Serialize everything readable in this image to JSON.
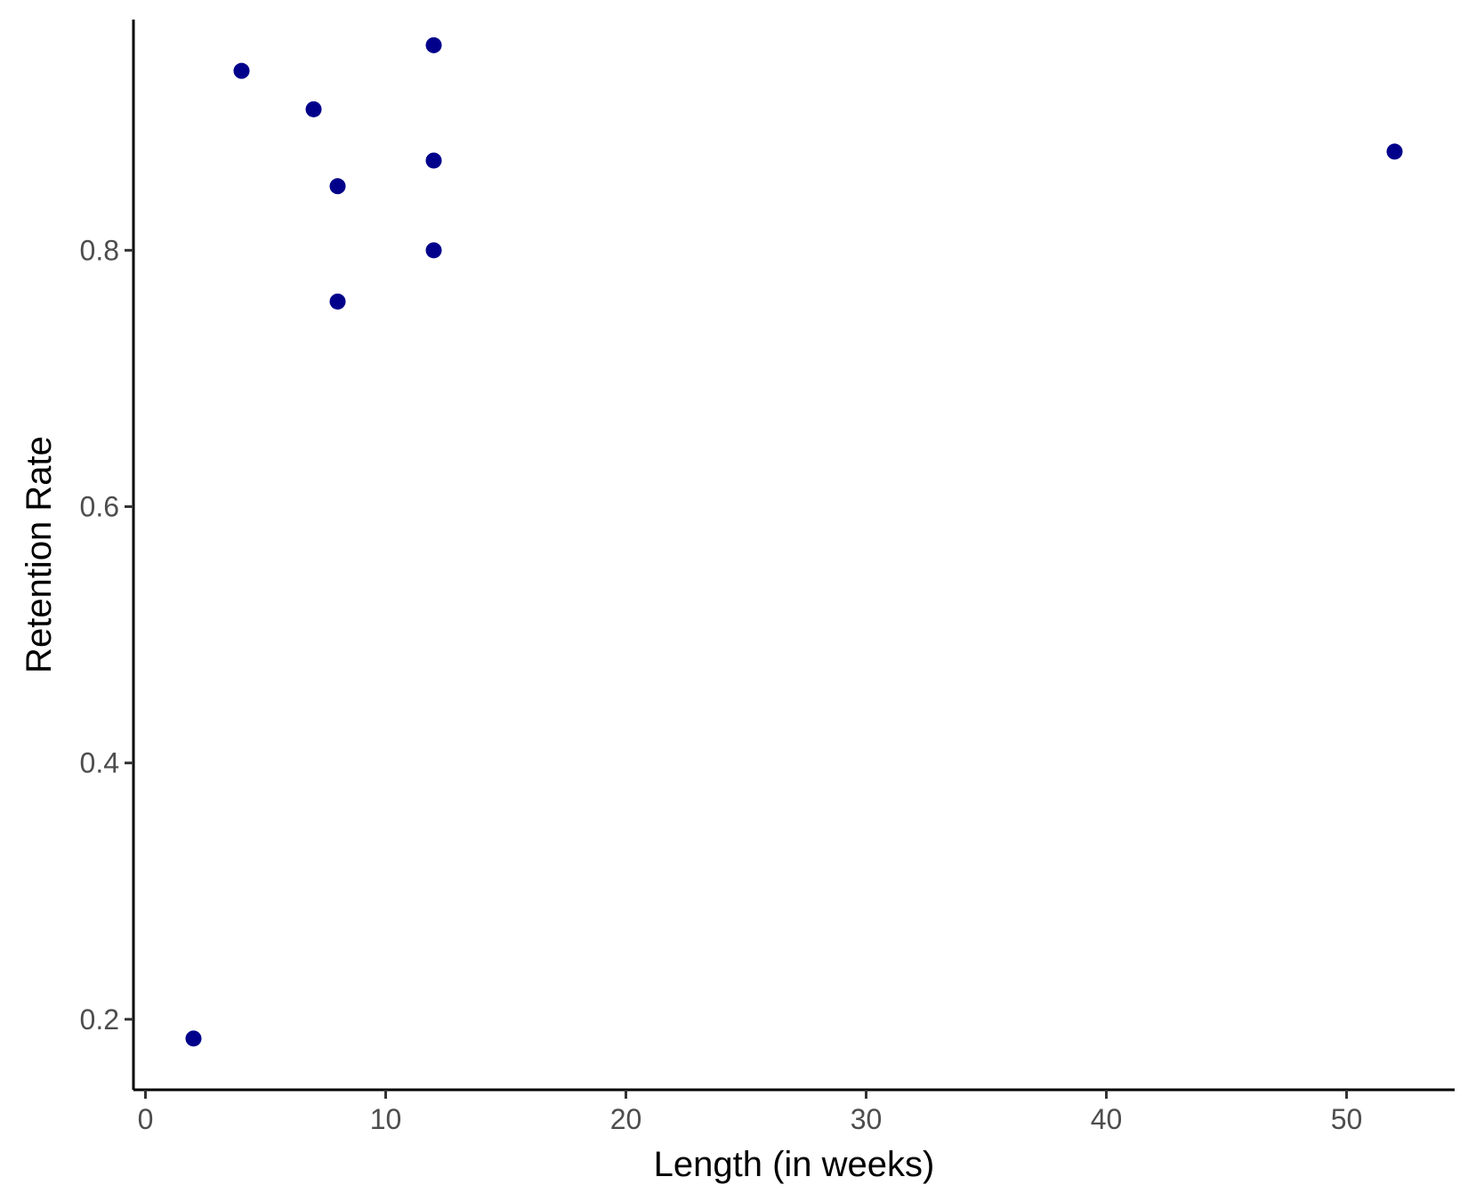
{
  "chart_data": {
    "type": "scatter",
    "title": "",
    "xlabel": "Length (in weeks)",
    "ylabel": "Retention Rate",
    "xlim": [
      -0.5,
      54.5
    ],
    "ylim": [
      0.145,
      0.98
    ],
    "x_ticks": [
      0,
      10,
      20,
      30,
      40,
      50
    ],
    "x_tick_labels": [
      "0",
      "10",
      "20",
      "30",
      "40",
      "50"
    ],
    "y_ticks": [
      0.2,
      0.4,
      0.6,
      0.8
    ],
    "y_tick_labels": [
      "0.2",
      "0.4",
      "0.6",
      "0.8"
    ],
    "grid": false,
    "point_color": "#00008B",
    "points": [
      {
        "x": 2,
        "y": 0.185
      },
      {
        "x": 4,
        "y": 0.94
      },
      {
        "x": 7,
        "y": 0.91
      },
      {
        "x": 8,
        "y": 0.85
      },
      {
        "x": 8,
        "y": 0.76
      },
      {
        "x": 12,
        "y": 0.96
      },
      {
        "x": 12,
        "y": 0.87
      },
      {
        "x": 12,
        "y": 0.8
      },
      {
        "x": 52,
        "y": 0.877
      }
    ]
  }
}
